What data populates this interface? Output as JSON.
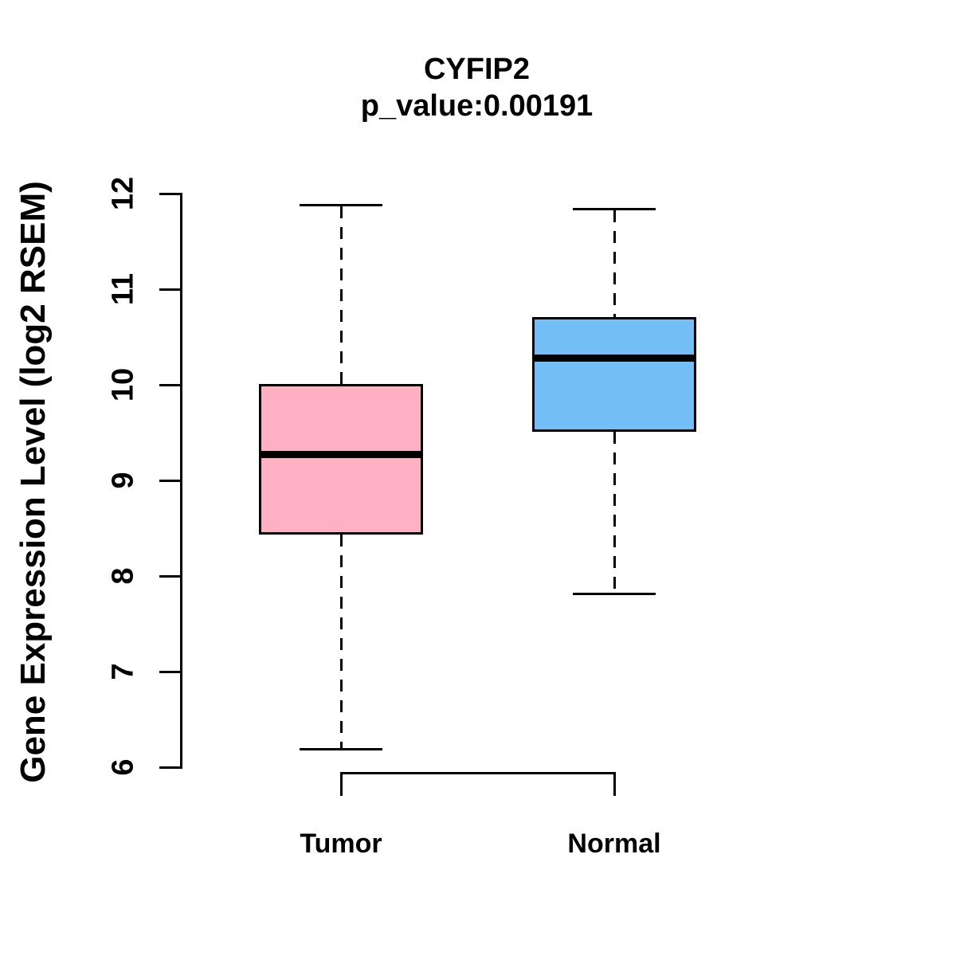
{
  "chart_data": {
    "type": "boxplot",
    "title": "CYFIP2",
    "subtitle": "p_value:0.00191",
    "p_value": 0.00191,
    "gene": "CYFIP2",
    "ylabel": "Gene Expression Level (log2 RSEM)",
    "xlabel": "",
    "ylim": [
      6,
      12
    ],
    "yticks": [
      6,
      7,
      8,
      9,
      10,
      11,
      12
    ],
    "ytick_labels": [
      "6",
      "7",
      "8",
      "9",
      "10",
      "11",
      "12"
    ],
    "grid": false,
    "legend": "none",
    "categories": [
      "Tumor",
      "Normal"
    ],
    "series": [
      {
        "name": "Tumor",
        "color": "#FFB1C3",
        "whisker_low": 6.19,
        "q1": 8.43,
        "median": 9.27,
        "q3": 10.01,
        "whisker_high": 11.88
      },
      {
        "name": "Normal",
        "color": "#74BEF8",
        "whisker_low": 7.81,
        "q1": 9.51,
        "median": 10.28,
        "q3": 10.71,
        "whisker_high": 11.84
      }
    ],
    "line_color": "#000000",
    "background_color": "#FFFFFF"
  }
}
